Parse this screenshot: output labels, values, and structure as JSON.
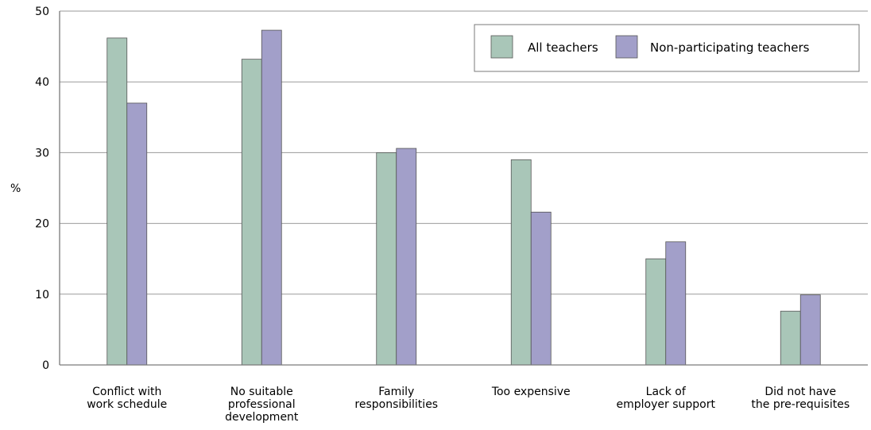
{
  "chart_data": {
    "type": "bar",
    "title": "",
    "xlabel": "",
    "ylabel": "%",
    "ylim": [
      0,
      50
    ],
    "yticks": [
      0,
      10,
      20,
      30,
      40,
      50
    ],
    "grid": true,
    "legend_position": "top-right",
    "categories": [
      [
        "Conflict with",
        "work schedule"
      ],
      [
        "No suitable",
        "professional",
        "development"
      ],
      [
        "Family",
        "responsibilities"
      ],
      [
        "Too expensive"
      ],
      [
        "Lack of",
        "employer support"
      ],
      [
        "Did not have",
        "the pre-requisites"
      ]
    ],
    "series": [
      {
        "name": "All teachers",
        "color": "#a9c6b8",
        "values": [
          46.2,
          43.2,
          30.0,
          29.0,
          15.0,
          7.6
        ]
      },
      {
        "name": "Non-participating teachers",
        "color": "#a29fc9",
        "values": [
          37.0,
          47.3,
          30.6,
          21.6,
          17.4,
          9.9
        ]
      }
    ]
  }
}
